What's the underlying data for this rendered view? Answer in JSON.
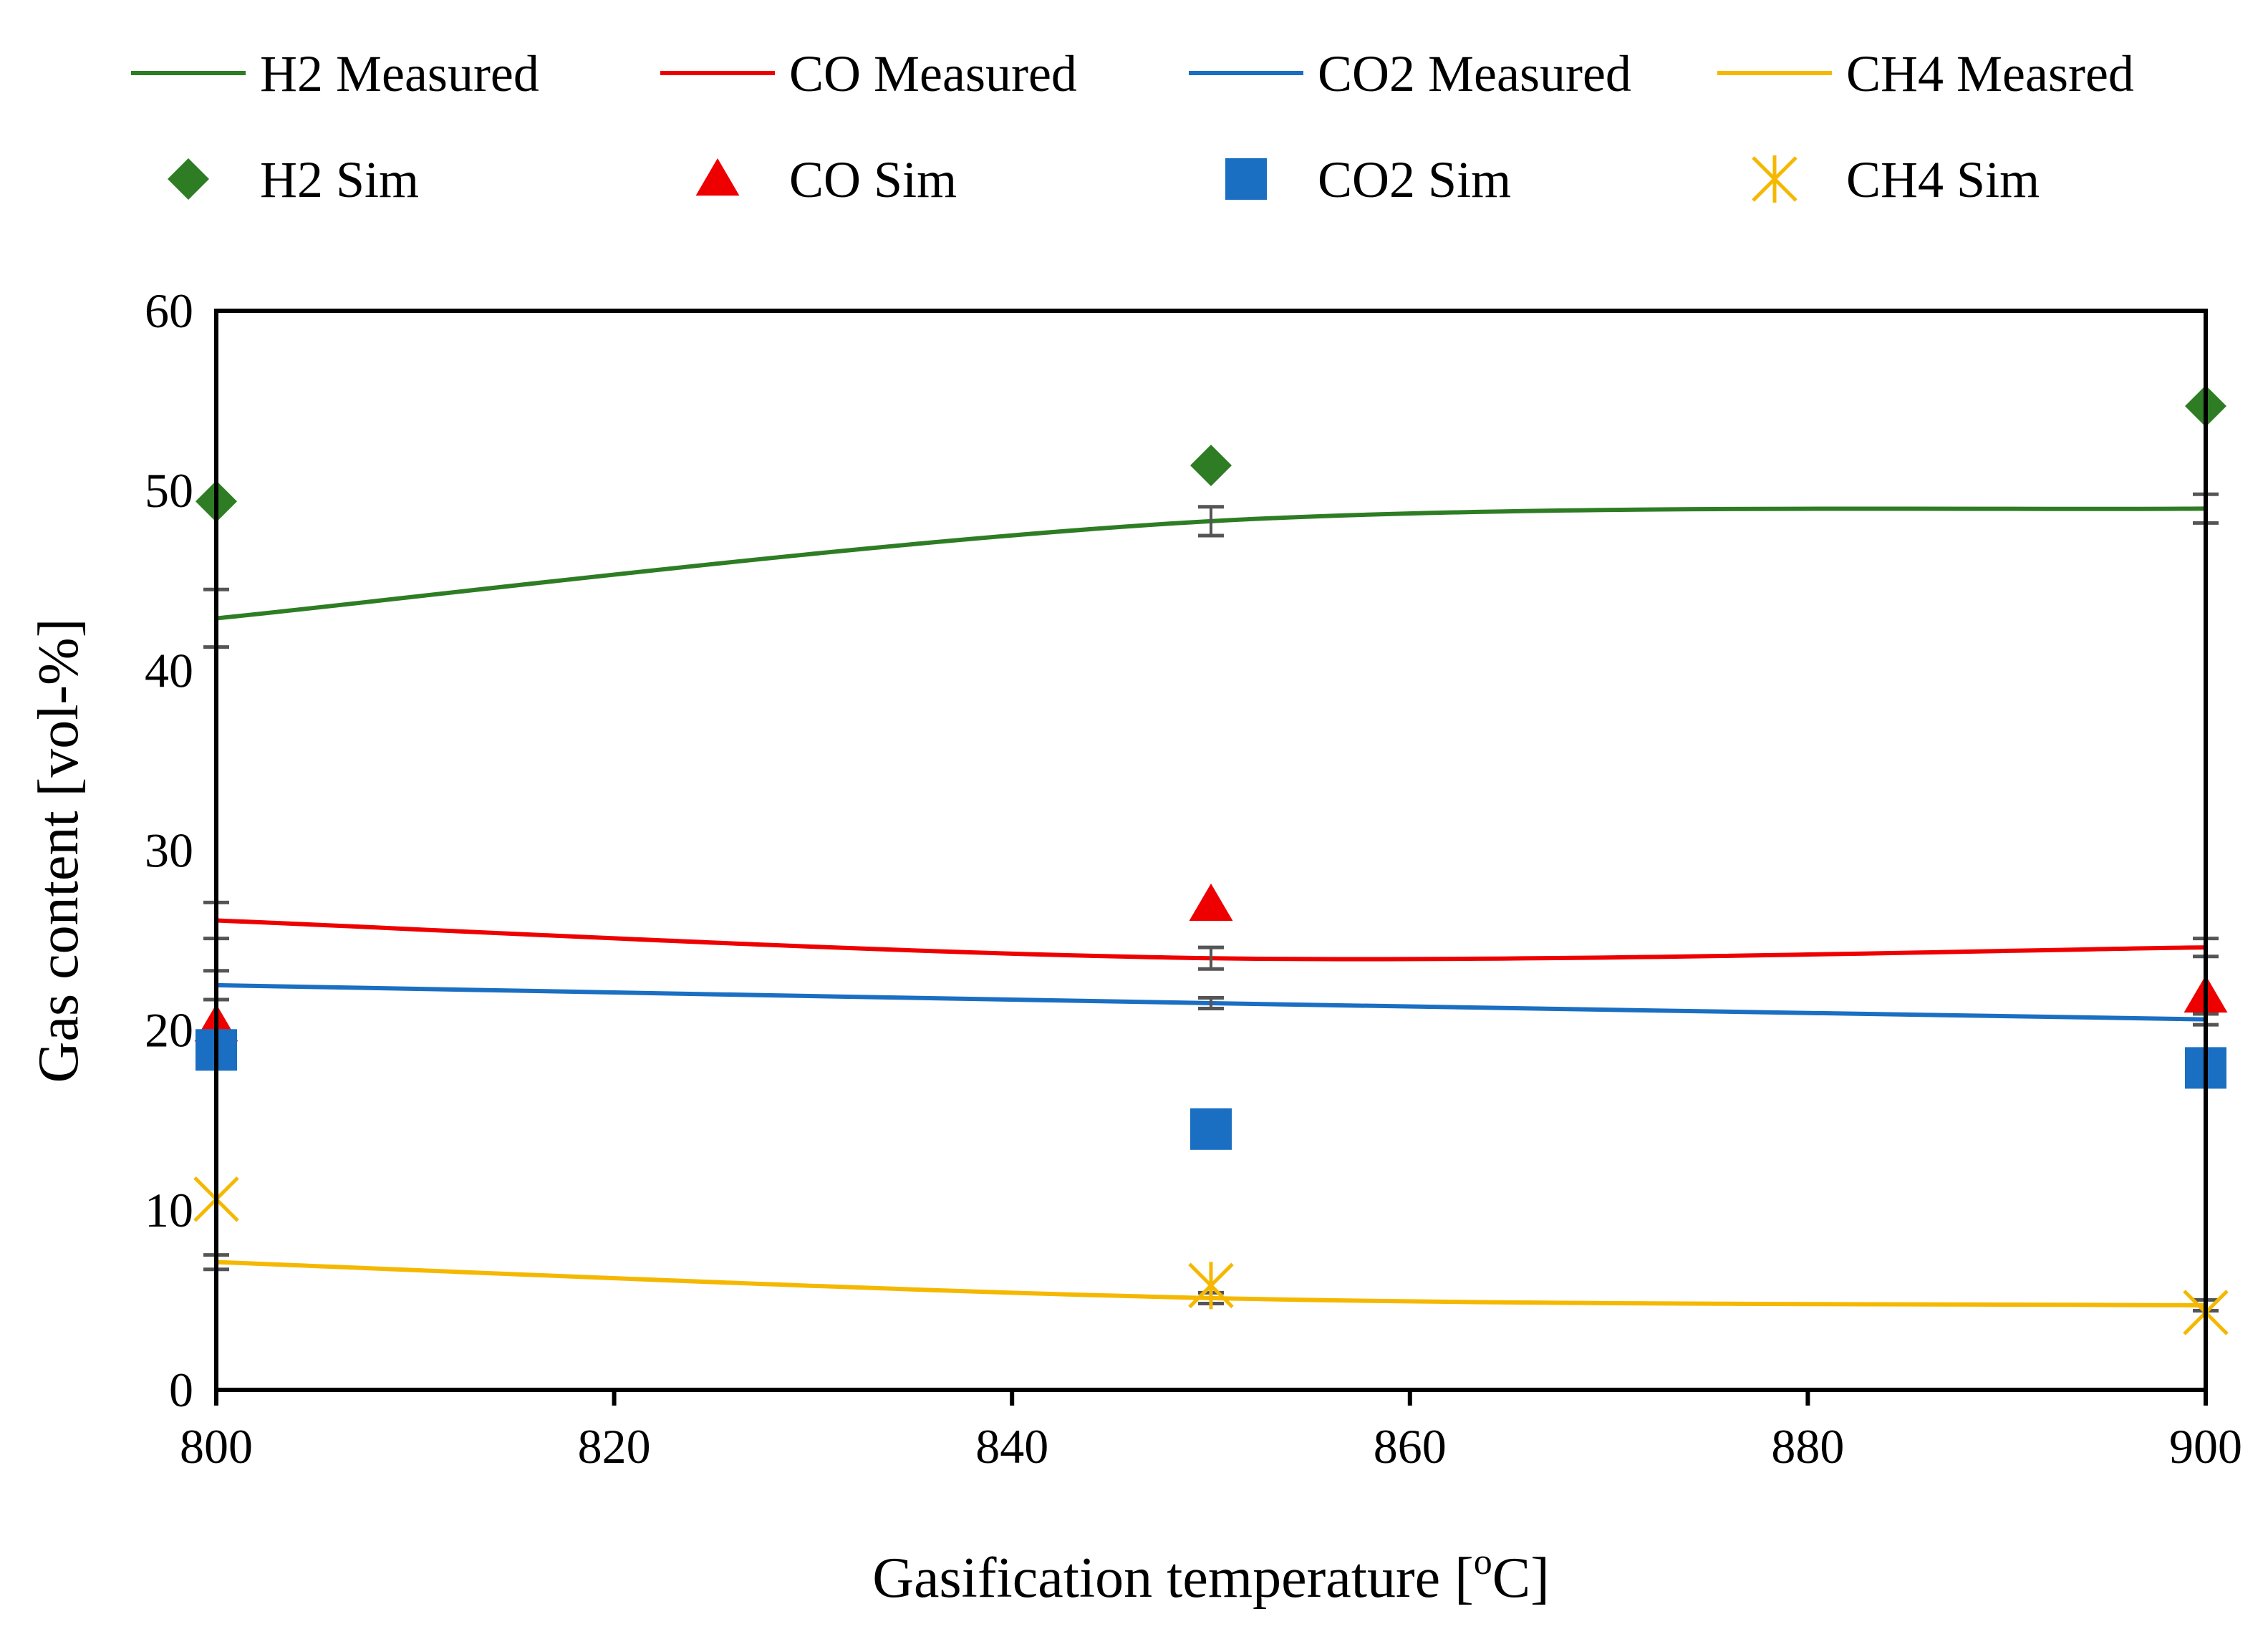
{
  "chart_data": {
    "type": "line",
    "title": "",
    "xlabel": "Gasification temperature [",
    "xlabel_sup": "o",
    "xlabel_tail": "C]",
    "ylabel": "Gas content [vol-%]",
    "xlim": [
      800,
      900
    ],
    "ylim": [
      0,
      60
    ],
    "xticks": [
      800,
      820,
      840,
      860,
      880,
      900
    ],
    "yticks": [
      0,
      10,
      20,
      30,
      40,
      50,
      60
    ],
    "grid": false,
    "legend": "top",
    "measured_x": [
      800,
      850,
      900
    ],
    "sim_x": [
      800,
      850,
      900
    ],
    "series": [
      {
        "key": "h2",
        "name": "H2 Measured",
        "color": "#2e7d24",
        "values": [
          42.9,
          48.3,
          49.0
        ],
        "errors": [
          1.6,
          0.8,
          0.8
        ]
      },
      {
        "key": "co",
        "name": "CO Measured",
        "color": "#ee0000",
        "values": [
          26.1,
          24.0,
          24.6
        ],
        "errors": [
          1.0,
          0.6,
          0.5
        ]
      },
      {
        "key": "co2",
        "name": "CO2 Measured",
        "color": "#1a6fc2",
        "values": [
          22.5,
          21.5,
          20.6
        ],
        "errors": [
          0.8,
          0.3,
          0.3
        ]
      },
      {
        "key": "ch4",
        "name": "CH4 Measred",
        "color": "#f5b800",
        "values": [
          7.1,
          5.1,
          4.7
        ],
        "errors": [
          0.4,
          0.3,
          0.3
        ]
      }
    ],
    "sim_series": [
      {
        "key": "h2",
        "name": "H2 Sim",
        "color": "#2e7d24",
        "marker": "diamond",
        "values": [
          49.4,
          51.4,
          54.7
        ]
      },
      {
        "key": "co",
        "name": "CO Sim",
        "color": "#ee0000",
        "marker": "triangle",
        "values": [
          20.3,
          27.0,
          21.9
        ]
      },
      {
        "key": "co2",
        "name": "CO2 Sim",
        "color": "#1a6fc2",
        "marker": "square",
        "values": [
          18.9,
          14.5,
          17.9
        ]
      },
      {
        "key": "ch4",
        "name": "CH4 Sim",
        "color": "#f5b800",
        "marker": "star",
        "values": [
          10.6,
          5.8,
          4.3
        ]
      }
    ]
  }
}
